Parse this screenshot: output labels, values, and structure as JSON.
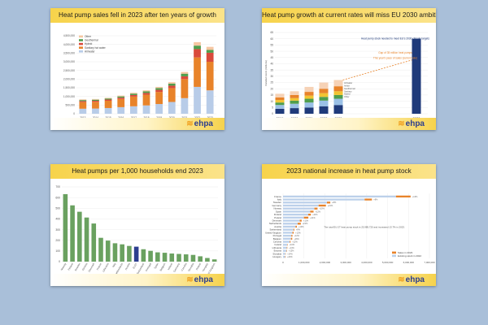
{
  "colors": {
    "background": "#a9bfd9",
    "title_bar": "#f7d34b",
    "brand": "#2c3e8f"
  },
  "logo_text": "ehpa",
  "chart_data": [
    {
      "type": "bar",
      "stacked": true,
      "title": "Heat pump sales fell in 2023 after ten years of growth",
      "categories": [
        "2013",
        "2014",
        "2015",
        "2016",
        "2017",
        "2018",
        "2019",
        "2020",
        "2021",
        "2022",
        "2023"
      ],
      "y_ticks": [
        "0",
        "500,000",
        "1,000,000",
        "1,500,000",
        "2,000,000",
        "2,500,000",
        "3,000,000",
        "3,500,000",
        "4,000,000",
        "4,500,000"
      ],
      "ylim": [
        0,
        4500000
      ],
      "legend_position": "top-left",
      "series": [
        {
          "name": "Air/water",
          "color": "#b8cce8",
          "values": [
            290000,
            300000,
            330000,
            380000,
            430000,
            480000,
            560000,
            680000,
            900000,
            1550000,
            1350000
          ]
        },
        {
          "name": "Sanitary hot water",
          "color": "#e8832a",
          "values": [
            380000,
            390000,
            420000,
            470000,
            560000,
            620000,
            700000,
            800000,
            1100000,
            1700000,
            1650000
          ]
        },
        {
          "name": "Hybrid",
          "color": "#d94a3c",
          "values": [
            60000,
            60000,
            70000,
            80000,
            90000,
            100000,
            120000,
            140000,
            160000,
            480000,
            520000
          ]
        },
        {
          "name": "Geothermal",
          "color": "#4f9e4d",
          "values": [
            60000,
            60000,
            60000,
            70000,
            80000,
            90000,
            100000,
            120000,
            150000,
            200000,
            160000
          ]
        },
        {
          "name": "Other",
          "color": "#f6c6a2",
          "values": [
            40000,
            40000,
            40000,
            50000,
            50000,
            60000,
            70000,
            80000,
            100000,
            200000,
            180000
          ]
        }
      ]
    },
    {
      "type": "bar",
      "stacked": true,
      "title": "Heat pump growth at current rates will miss EU 2030 ambition",
      "categories": [
        "2019",
        "2020",
        "2021",
        "2022",
        "2023",
        "2030"
      ],
      "y_ticks": [
        "0",
        "5",
        "10",
        "15",
        "20",
        "25",
        "30",
        "35",
        "40",
        "45",
        "50",
        "55",
        "60",
        "65"
      ],
      "ylim": [
        0,
        65
      ],
      "ylabel": "Installed stock (millions)",
      "series": [
        {
          "name": "Other",
          "color": "#1f3a7a",
          "values": [
            4,
            4.5,
            5,
            6,
            7,
            60
          ]
        },
        {
          "name": "Hybrid",
          "color": "#9ac0e6",
          "values": [
            3,
            3.5,
            4,
            4.5,
            5,
            0
          ]
        },
        {
          "name": "Sanitary",
          "color": "#4f9e4d",
          "values": [
            2,
            2.5,
            3,
            3,
            3,
            0
          ]
        },
        {
          "name": "Geothermal",
          "color": "#f2c431",
          "values": [
            2,
            2,
            2.5,
            3,
            3,
            0
          ]
        },
        {
          "name": "Air/air",
          "color": "#e8832a",
          "values": [
            2,
            2.5,
            3,
            3.5,
            4,
            0
          ]
        },
        {
          "name": "Air/water",
          "color": "#f6d2b6",
          "values": [
            3,
            3,
            4,
            5,
            5,
            0
          ]
        }
      ],
      "annotations": [
        "Heat pump stock needed to meet EU's 2030 climate targets",
        "Gap of 35 million heat pumps",
        "This year's pace of sales (current rate)"
      ]
    },
    {
      "type": "bar",
      "title": "Heat pumps per 1,000 households end 2023",
      "y_ticks": [
        "0",
        "100",
        "200",
        "300",
        "400",
        "500",
        "600",
        "700"
      ],
      "ylim": [
        0,
        700
      ],
      "categories": [
        "Norway",
        "Finland",
        "Sweden",
        "Estonia",
        "Denmark",
        "France",
        "Lithuania",
        "Italy",
        "Netherlands",
        "Austria",
        "EU27",
        "Switzerland",
        "Portugal",
        "Spain",
        "Belgium",
        "Ireland",
        "Germany",
        "Czechia",
        "Slovakia",
        "Poland",
        "Hungary",
        "United Kingdom"
      ],
      "values": [
        632,
        527,
        467,
        413,
        357,
        223,
        197,
        172,
        162,
        147,
        140,
        116,
        101,
        87,
        83,
        76,
        72,
        68,
        63,
        50,
        34,
        21
      ],
      "highlight_index": 10,
      "color": "#6aa160",
      "highlight_color": "#2c3e8f"
    },
    {
      "type": "bar",
      "orientation": "horizontal",
      "stacked": true,
      "title": "2023 national increase in heat pump stock",
      "x_ticks": [
        "0",
        "1,000,000",
        "2,000,000",
        "3,000,000",
        "4,000,000",
        "5,000,000",
        "6,000,000",
        "7,000,000"
      ],
      "xlim": [
        0,
        7000000
      ],
      "categories": [
        "France",
        "Italy",
        "Sweden",
        "Germany",
        "Norway",
        "Spain",
        "Finland",
        "Poland",
        "Denmark",
        "Netherlands",
        "Austria",
        "Switzerland",
        "United Kingdom",
        "Portugal",
        "Belgium",
        "Czechia",
        "Ireland",
        "Lithuania",
        "Estonia",
        "Slovakia",
        "Hungary"
      ],
      "series": [
        {
          "name": "Existing stock in 2022",
          "color": "#bcd0ea",
          "values": [
            5400000,
            3900000,
            2100000,
            1700000,
            1500000,
            1300000,
            1200000,
            1000000,
            800000,
            700000,
            600000,
            500000,
            450000,
            400000,
            380000,
            320000,
            200000,
            180000,
            170000,
            110000,
            100000
          ]
        },
        {
          "name": "Sales in 2023",
          "color": "#e8832a",
          "values": [
            700000,
            350000,
            160000,
            350000,
            150000,
            160000,
            130000,
            210000,
            90000,
            150000,
            60000,
            40000,
            60000,
            50000,
            60000,
            40000,
            20000,
            25000,
            20000,
            15000,
            20000
          ]
        }
      ],
      "value_labels": [
        "+13%",
        "+9%",
        "+8%",
        "+21%",
        "+10%",
        "+12%",
        "+11%",
        "+21%",
        "+11%",
        "+21%",
        "+10%",
        "+8%",
        "+13%",
        "+12%",
        "+16%",
        "+12%",
        "+10%",
        "+14%",
        "+12%",
        "+14%",
        "+20%"
      ],
      "legend_position": "bottom-right",
      "annotation": "The total EU-27 heat pump stock is 23,985,720 and increased 13.7% in 2023."
    }
  ]
}
